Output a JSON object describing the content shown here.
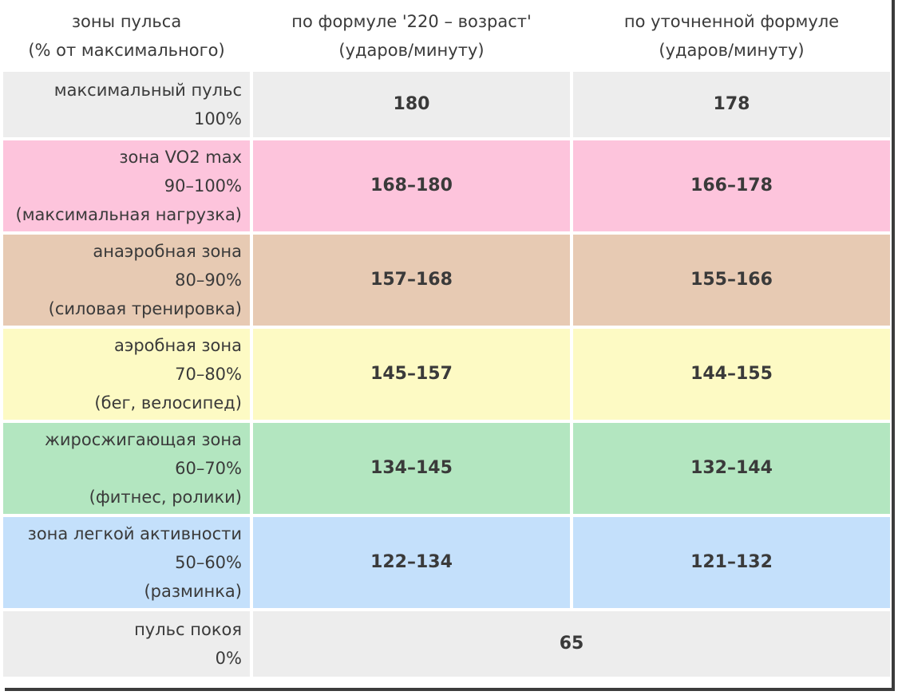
{
  "table": {
    "headers": [
      {
        "line1": "зоны пульса",
        "line2": "(% от максимального)"
      },
      {
        "line1": "по формуле '220 – возраст'",
        "line2": "(ударов/минуту)"
      },
      {
        "line1": "по уточненной формуле",
        "line2": "(ударов/минуту)"
      }
    ],
    "rows": [
      {
        "name": "максимальный пульс",
        "percent": "100%",
        "note": "",
        "col1": "180",
        "col2": "178",
        "color": "#ededed"
      },
      {
        "name": "зона VO2 max",
        "percent": "90–100%",
        "note": "(максимальная нагрузка)",
        "col1": "168–180",
        "col2": "166–178",
        "color": "#fdc4dc"
      },
      {
        "name": "анаэробная зона",
        "percent": "80–90%",
        "note": "(силовая тренировка)",
        "col1": "157–168",
        "col2": "155–166",
        "color": "#e7cab3"
      },
      {
        "name": "аэробная зона",
        "percent": "70–80%",
        "note": "(бег, велосипед)",
        "col1": "145–157",
        "col2": "144–155",
        "color": "#fdfac4"
      },
      {
        "name": "жиросжигающая зона",
        "percent": "60–70%",
        "note": "(фитнес, ролики)",
        "col1": "134–145",
        "col2": "132–144",
        "color": "#b3e6c0"
      },
      {
        "name": "зона легкой активности",
        "percent": "50–60%",
        "note": "(разминка)",
        "col1": "122–134",
        "col2": "121–132",
        "color": "#c4e0fb"
      },
      {
        "name": "пульс покоя",
        "percent": "0%",
        "note": "",
        "merged": "65",
        "color": "#ededed"
      }
    ]
  }
}
